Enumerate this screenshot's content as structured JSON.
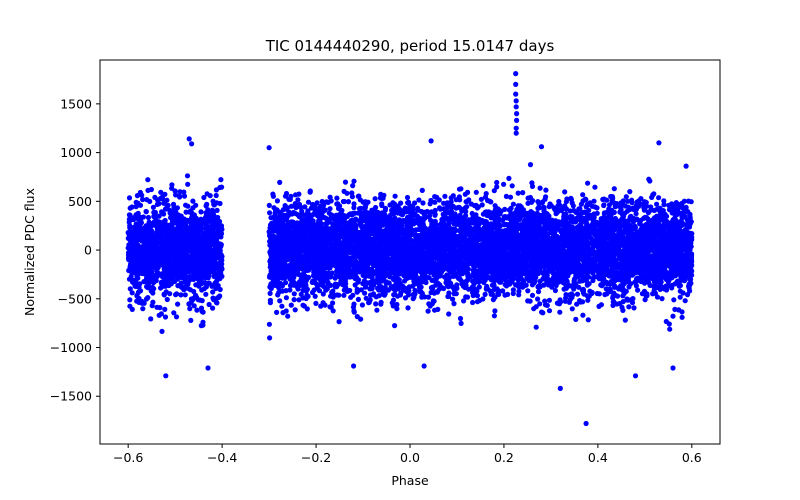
{
  "chart_data": {
    "type": "scatter",
    "title": "TIC 0144440290, period 15.0147 days",
    "xlabel": "Phase",
    "ylabel": "Normalized PDC flux",
    "xlim": [
      -0.66,
      0.66
    ],
    "ylim": [
      -1990,
      1950
    ],
    "x_ticks": [
      -0.6,
      -0.4,
      -0.2,
      0.0,
      0.2,
      0.4,
      0.6
    ],
    "x_tick_labels": [
      "−0.6",
      "−0.4",
      "−0.2",
      "0.0",
      "0.2",
      "0.4",
      "0.6"
    ],
    "y_ticks": [
      -1500,
      -1000,
      -500,
      0,
      500,
      1000,
      1500
    ],
    "y_tick_labels": [
      "−1500",
      "−1000",
      "−500",
      "0",
      "500",
      "1000",
      "1500"
    ],
    "marker_color": "#0000ff",
    "series": [
      {
        "name": "PDC flux",
        "phase_segments": [
          [
            -0.6,
            -0.4
          ],
          [
            -0.3,
            0.6
          ]
        ],
        "core_spread": 450,
        "approx_points": 9000,
        "notable_points": [
          {
            "x": 0.225,
            "y": 1810
          },
          {
            "x": 0.225,
            "y": 1700
          },
          {
            "x": 0.225,
            "y": 1600
          },
          {
            "x": 0.226,
            "y": 1530
          },
          {
            "x": 0.226,
            "y": 1470
          },
          {
            "x": 0.227,
            "y": 1400
          },
          {
            "x": 0.227,
            "y": 1330
          },
          {
            "x": 0.226,
            "y": 1250
          },
          {
            "x": 0.226,
            "y": 1200
          },
          {
            "x": -0.47,
            "y": 1140
          },
          {
            "x": -0.465,
            "y": 1090
          },
          {
            "x": 0.045,
            "y": 1120
          },
          {
            "x": 0.53,
            "y": 1100
          },
          {
            "x": -0.3,
            "y": 1050
          },
          {
            "x": 0.28,
            "y": 1060
          },
          {
            "x": -0.52,
            "y": -1290
          },
          {
            "x": -0.43,
            "y": -1210
          },
          {
            "x": 0.03,
            "y": -1190
          },
          {
            "x": -0.12,
            "y": -1190
          },
          {
            "x": 0.48,
            "y": -1290
          },
          {
            "x": 0.56,
            "y": -1210
          },
          {
            "x": 0.32,
            "y": -1420
          },
          {
            "x": 0.375,
            "y": -1780
          }
        ]
      }
    ]
  }
}
